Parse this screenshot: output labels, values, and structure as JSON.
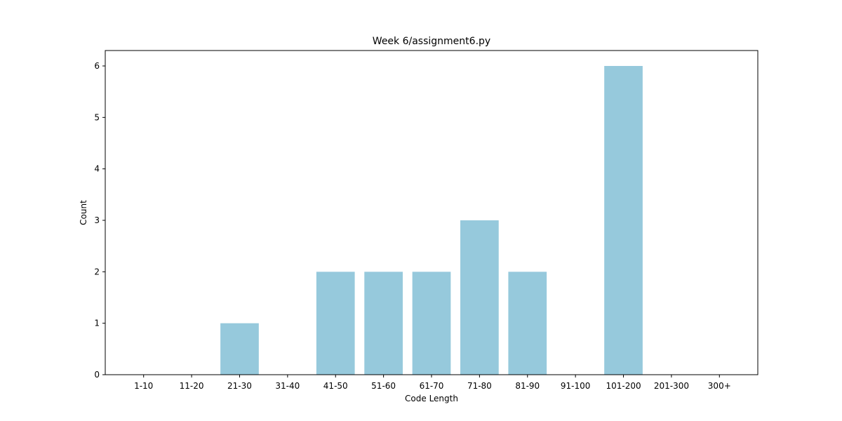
{
  "chart_data": {
    "type": "bar",
    "title": "Week 6/assignment6.py",
    "xlabel": "Code Length",
    "ylabel": "Count",
    "categories": [
      "1-10",
      "11-20",
      "21-30",
      "31-40",
      "41-50",
      "51-60",
      "61-70",
      "71-80",
      "81-90",
      "91-100",
      "101-200",
      "201-300",
      "300+"
    ],
    "values": [
      0,
      0,
      1,
      0,
      2,
      2,
      2,
      3,
      2,
      0,
      6,
      0,
      0
    ],
    "ylim": [
      0,
      6.3
    ],
    "yticks": [
      0,
      1,
      2,
      3,
      4,
      5,
      6
    ],
    "bar_color": "#96c9dc",
    "grid": false,
    "legend": "none"
  }
}
